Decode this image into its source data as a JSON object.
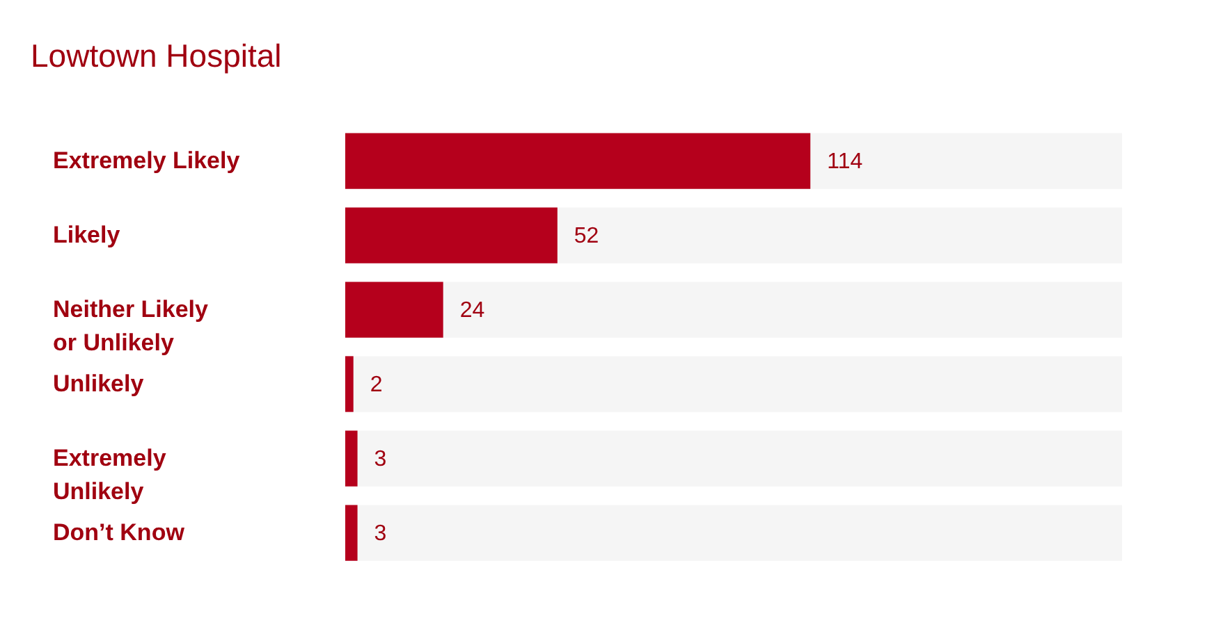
{
  "chart_data": {
    "type": "bar",
    "orientation": "horizontal",
    "title": "Lowtown Hospital",
    "categories": [
      "Extremely Likely",
      "Likely",
      "Neither Likely or Unlikely",
      "Unlikely",
      "Extremely Unlikely",
      "Don’t Know"
    ],
    "values": [
      114,
      52,
      24,
      2,
      3,
      3
    ],
    "color": "#b5001c",
    "tick_labels": "y",
    "data_labels": true
  }
}
